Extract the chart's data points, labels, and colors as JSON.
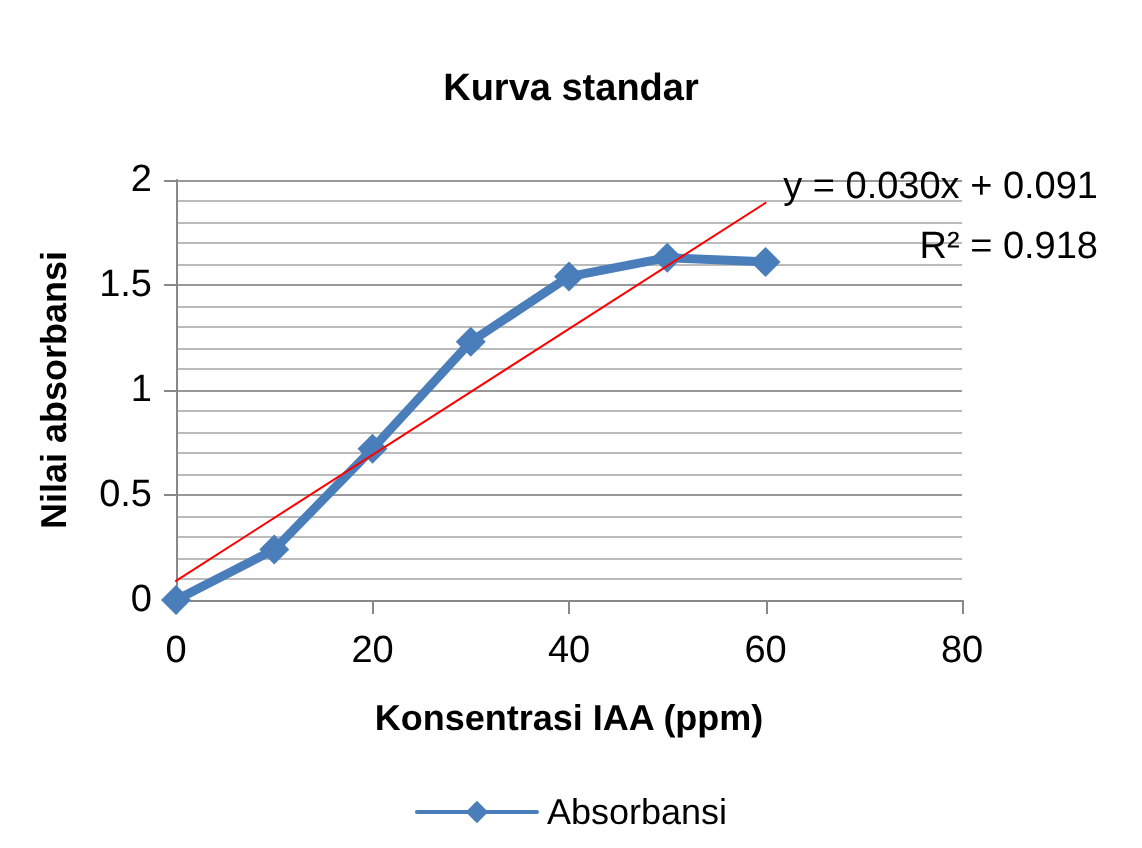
{
  "chart_data": {
    "type": "line",
    "title": "Kurva standar",
    "xlabel": "Konsentrasi IAA (ppm)",
    "ylabel": "Nilai absorbansi",
    "x": [
      0,
      10,
      20,
      30,
      40,
      50,
      60
    ],
    "series": [
      {
        "name": "Absorbansi",
        "color": "#4a7ebb",
        "values": [
          0,
          0.24,
          0.72,
          1.23,
          1.54,
          1.63,
          1.61
        ],
        "marker": "diamond"
      },
      {
        "type": "line",
        "x": [
          0,
          60
        ],
        "color": "#ff0000",
        "values": [
          0.091,
          1.891
        ],
        "marker": "none"
      }
    ],
    "xlim": [
      0,
      80
    ],
    "xticks": [
      0,
      20,
      40,
      60,
      80
    ],
    "ylim": [
      0,
      2
    ],
    "yticks": [
      0,
      0.5,
      1,
      1.5,
      2
    ],
    "grid": "y",
    "legend": "bottom",
    "annotations": [
      "y = 0.030x + 0.091",
      "R² = 0.918"
    ]
  }
}
